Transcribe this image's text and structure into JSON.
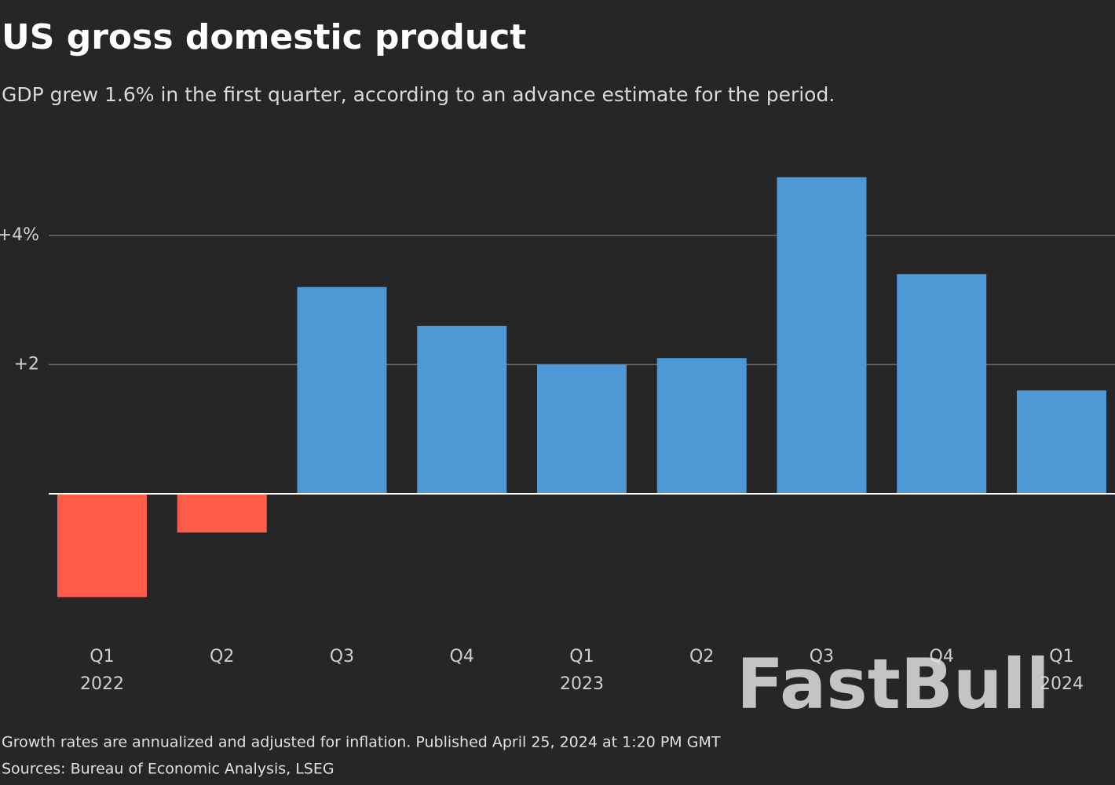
{
  "chart_data": {
    "type": "bar",
    "title": "US gross domestic product",
    "subtitle": "GDP grew 1.6% in the first quarter, according to an advance estimate for the period.",
    "categories": [
      "Q1",
      "Q2",
      "Q3",
      "Q4",
      "Q1",
      "Q2",
      "Q3",
      "Q4",
      "Q1"
    ],
    "years": [
      "2022",
      null,
      null,
      null,
      "2023",
      null,
      null,
      null,
      "2024"
    ],
    "values": [
      -1.6,
      -0.6,
      3.2,
      2.6,
      2.0,
      2.1,
      4.9,
      3.4,
      1.6
    ],
    "colors": {
      "positive": "#4d98d5",
      "negative": "#ff5c4a"
    },
    "ylim": [
      -2,
      5.4
    ],
    "yticks": [
      {
        "value": 2,
        "label": "+2"
      },
      {
        "value": 4,
        "label": "+4%"
      }
    ],
    "grid": true,
    "notes": [
      "Growth rates are annualized and adjusted for inflation. Published April 25, 2024 at 1:20 PM GMT",
      "Sources: Bureau of Economic Analysis, LSEG"
    ],
    "watermark": "FastBull"
  }
}
